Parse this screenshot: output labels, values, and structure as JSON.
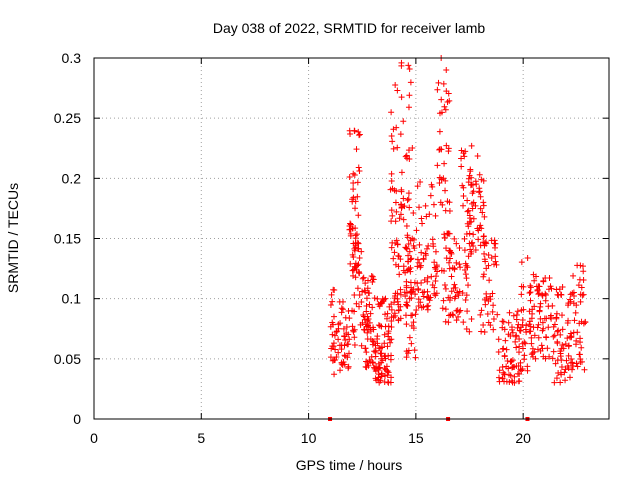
{
  "chart_data": {
    "type": "scatter",
    "title": "Day 038 of 2022, SRMTID for receiver lamb",
    "xlabel": "GPS time / hours",
    "ylabel": "SRMTID / TECUs",
    "xlim": [
      0,
      24
    ],
    "ylim": [
      0,
      0.3
    ],
    "x_ticks": [
      0,
      5,
      10,
      15,
      20
    ],
    "x_tick_labels": [
      "0",
      "5",
      "10",
      "15",
      "20"
    ],
    "y_ticks": [
      0,
      0.05,
      0.1,
      0.15,
      0.2,
      0.25,
      0.3
    ],
    "y_tick_labels": [
      "0",
      "0.05",
      "0.1",
      "0.15",
      "0.2",
      "0.25",
      "0.3"
    ],
    "grid": true,
    "marker": "+",
    "colors": {
      "series": "#ff0000",
      "grid": "#a0a0a0",
      "frame": "#000000"
    },
    "zero_markers_x": [
      11.0,
      16.5,
      20.2
    ],
    "series": [
      {
        "name": "SRMTID",
        "clusters": [
          {
            "x_range": [
              11.0,
              11.2
            ],
            "y_range": [
              0.035,
              0.11
            ],
            "count": 18
          },
          {
            "x_range": [
              11.2,
              11.9
            ],
            "y_range": [
              0.04,
              0.1
            ],
            "count": 45
          },
          {
            "x_range": [
              11.9,
              12.4
            ],
            "y_range": [
              0.12,
              0.24
            ],
            "count": 60
          },
          {
            "x_range": [
              12.0,
              12.6
            ],
            "y_range": [
              0.06,
              0.15
            ],
            "count": 30
          },
          {
            "x_range": [
              12.6,
              13.1
            ],
            "y_range": [
              0.04,
              0.12
            ],
            "count": 55
          },
          {
            "x_range": [
              13.1,
              13.9
            ],
            "y_range": [
              0.03,
              0.1
            ],
            "count": 85
          },
          {
            "x_range": [
              13.8,
              14.3
            ],
            "y_range": [
              0.08,
              0.28
            ],
            "count": 55
          },
          {
            "x_range": [
              14.3,
              14.9
            ],
            "y_range": [
              0.1,
              0.3
            ],
            "count": 60
          },
          {
            "x_range": [
              14.5,
              15.0
            ],
            "y_range": [
              0.05,
              0.15
            ],
            "count": 35
          },
          {
            "x_range": [
              15.0,
              16.0
            ],
            "y_range": [
              0.09,
              0.2
            ],
            "count": 70
          },
          {
            "x_range": [
              16.0,
              16.6
            ],
            "y_range": [
              0.15,
              0.3
            ],
            "count": 40
          },
          {
            "x_range": [
              16.2,
              17.1
            ],
            "y_range": [
              0.08,
              0.16
            ],
            "count": 55
          },
          {
            "x_range": [
              17.1,
              17.6
            ],
            "y_range": [
              0.07,
              0.23
            ],
            "count": 45
          },
          {
            "x_range": [
              17.5,
              18.2
            ],
            "y_range": [
              0.14,
              0.22
            ],
            "count": 45
          },
          {
            "x_range": [
              18.0,
              18.8
            ],
            "y_range": [
              0.07,
              0.15
            ],
            "count": 45
          },
          {
            "x_range": [
              18.8,
              19.9
            ],
            "y_range": [
              0.03,
              0.09
            ],
            "count": 70
          },
          {
            "x_range": [
              19.9,
              20.3
            ],
            "y_range": [
              0.04,
              0.14
            ],
            "count": 25
          },
          {
            "x_range": [
              20.3,
              21.3
            ],
            "y_range": [
              0.05,
              0.12
            ],
            "count": 70
          },
          {
            "x_range": [
              21.3,
              22.2
            ],
            "y_range": [
              0.03,
              0.11
            ],
            "count": 60
          },
          {
            "x_range": [
              22.2,
              22.9
            ],
            "y_range": [
              0.04,
              0.13
            ],
            "count": 50
          }
        ]
      }
    ]
  }
}
